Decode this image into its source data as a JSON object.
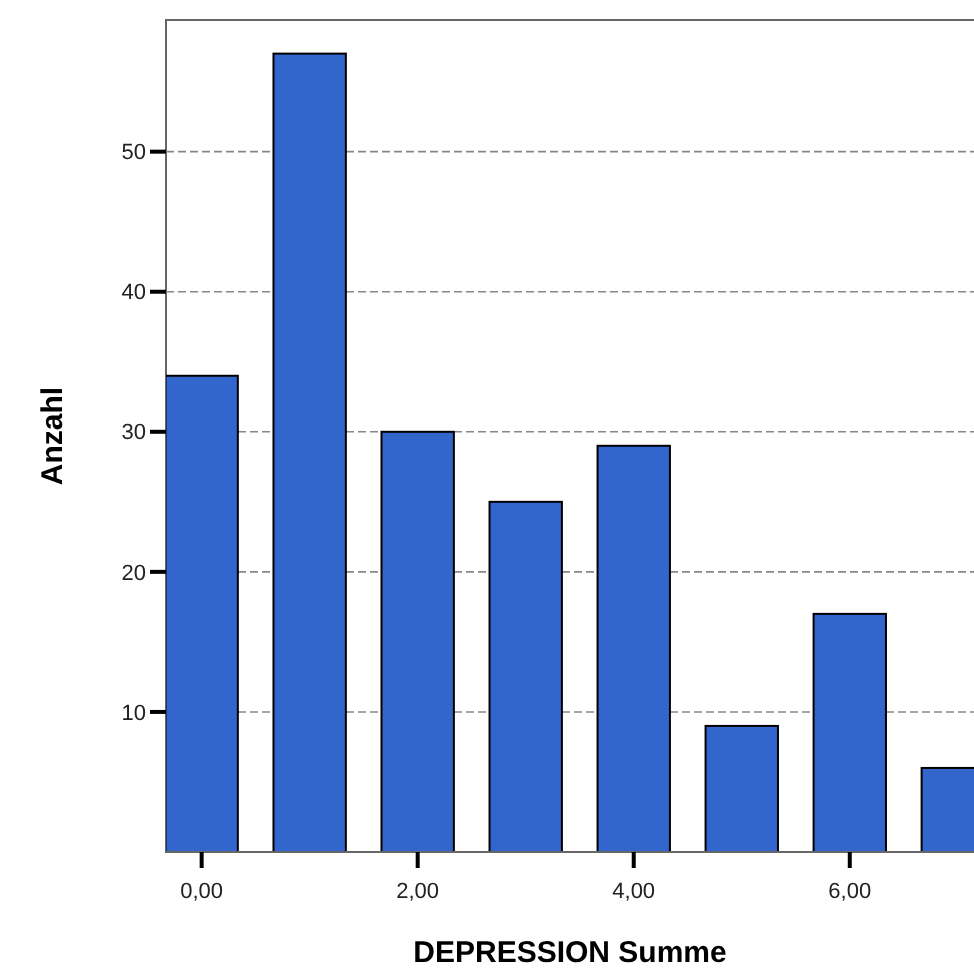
{
  "chart_data": {
    "type": "bar",
    "xlabel": "DEPRESSION Summe",
    "ylabel": "Anzahl",
    "x": [
      0,
      1,
      2,
      3,
      4,
      5,
      6,
      7
    ],
    "values": [
      34,
      57,
      30,
      25,
      29,
      9,
      17,
      6
    ],
    "color": "#3366cc",
    "xlim": [
      -0.33,
      7.15
    ],
    "xticks": [
      {
        "value": 0,
        "label": "0,00"
      },
      {
        "value": 2,
        "label": "2,00"
      },
      {
        "value": 4,
        "label": "4,00"
      },
      {
        "value": 6,
        "label": "6,00"
      }
    ],
    "ylim": [
      0,
      59.4
    ],
    "yticks": [
      10,
      20,
      30,
      40,
      50
    ],
    "grid": "y"
  }
}
